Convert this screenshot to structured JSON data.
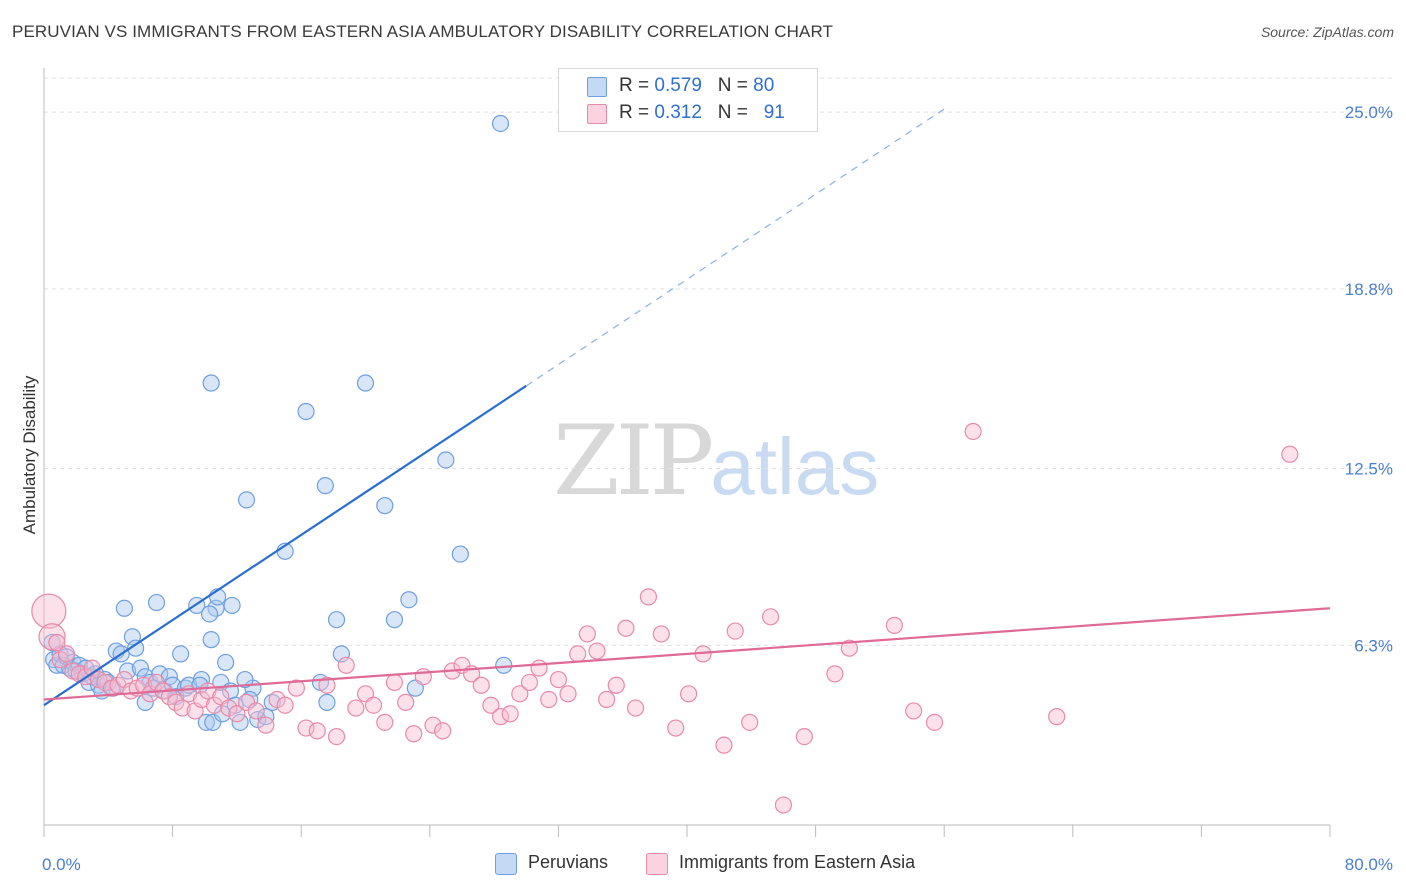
{
  "title": "PERUVIAN VS IMMIGRANTS FROM EASTERN ASIA AMBULATORY DISABILITY CORRELATION CHART",
  "source": "Source: ZipAtlas.com",
  "watermark": {
    "part1": "ZIP",
    "part2": "atlas"
  },
  "legend_top": [
    {
      "r_label": "R = ",
      "r_value": "0.579",
      "n_label": "N = ",
      "n_value": "80",
      "color": "#a8c8f0"
    },
    {
      "r_label": "R = ",
      "r_value": "0.312",
      "n_label": "N = ",
      "n_value": "91",
      "color": "#f8bcd0"
    }
  ],
  "colors": {
    "blue": "#6f9fe0",
    "blue_fill": "#a8c8f0",
    "blue_line": "#2a6fd0",
    "pink": "#e88aa8",
    "pink_fill": "#f8bcd0",
    "pink_line": "#e06a96",
    "grid": "#e0e0e0"
  },
  "chart_data": {
    "type": "scatter",
    "title": "PERUVIAN VS IMMIGRANTS FROM EASTERN ASIA AMBULATORY DISABILITY CORRELATION CHART",
    "xlabel": "",
    "ylabel": "Ambulatory Disability",
    "xlim": [
      0,
      80
    ],
    "ylim": [
      0,
      26.3
    ],
    "x_tick_labels": [
      "0.0%",
      "80.0%"
    ],
    "y_ticks": [
      6.3,
      12.5,
      18.8,
      25.0
    ],
    "y_tick_labels": [
      "6.3%",
      "12.5%",
      "18.8%",
      "25.0%"
    ],
    "grid": true,
    "legend_placement": "bottom",
    "series": [
      {
        "name": "Peruvians",
        "color": "#6f9fe0",
        "trend": {
          "x0": 0,
          "y0": 4.2,
          "x1": 30.0,
          "y1": 15.4,
          "dash_to_x": 56
        },
        "points": [
          [
            0.5,
            6.4
          ],
          [
            0.6,
            5.8
          ],
          [
            0.8,
            5.6
          ],
          [
            1.0,
            6.0
          ],
          [
            1.2,
            5.6
          ],
          [
            1.4,
            5.9
          ],
          [
            1.6,
            5.5
          ],
          [
            1.8,
            5.7
          ],
          [
            2.0,
            5.4
          ],
          [
            2.2,
            5.6
          ],
          [
            2.4,
            5.3
          ],
          [
            2.6,
            5.5
          ],
          [
            2.8,
            5.0
          ],
          [
            3.0,
            5.2
          ],
          [
            3.2,
            5.3
          ],
          [
            3.4,
            4.9
          ],
          [
            3.6,
            4.7
          ],
          [
            3.8,
            5.1
          ],
          [
            4.0,
            5.0
          ],
          [
            4.3,
            4.8
          ],
          [
            4.5,
            6.1
          ],
          [
            4.8,
            6.0
          ],
          [
            5.0,
            7.6
          ],
          [
            5.2,
            5.4
          ],
          [
            5.5,
            6.6
          ],
          [
            5.7,
            6.2
          ],
          [
            6.0,
            5.5
          ],
          [
            6.3,
            5.2
          ],
          [
            6.6,
            5.0
          ],
          [
            6.8,
            4.8
          ],
          [
            7.0,
            7.8
          ],
          [
            7.2,
            5.3
          ],
          [
            7.5,
            4.7
          ],
          [
            7.8,
            5.2
          ],
          [
            8.0,
            4.9
          ],
          [
            8.2,
            4.5
          ],
          [
            8.5,
            6.0
          ],
          [
            8.8,
            4.8
          ],
          [
            9.0,
            4.9
          ],
          [
            9.5,
            7.7
          ],
          [
            9.8,
            5.1
          ],
          [
            10.1,
            3.6
          ],
          [
            10.4,
            6.5
          ],
          [
            10.7,
            7.6
          ],
          [
            11.0,
            5.0
          ],
          [
            11.3,
            5.7
          ],
          [
            11.6,
            4.7
          ],
          [
            11.9,
            4.2
          ],
          [
            12.2,
            3.6
          ],
          [
            12.6,
            11.4
          ],
          [
            13.0,
            4.8
          ],
          [
            13.3,
            3.7
          ],
          [
            10.3,
            7.4
          ],
          [
            10.8,
            8.0
          ],
          [
            9.7,
            4.9
          ],
          [
            6.3,
            4.3
          ],
          [
            10.4,
            15.5
          ],
          [
            10.5,
            3.6
          ],
          [
            11.1,
            3.9
          ],
          [
            11.7,
            7.7
          ],
          [
            12.5,
            5.1
          ],
          [
            12.8,
            4.4
          ],
          [
            13.8,
            3.8
          ],
          [
            14.2,
            4.3
          ],
          [
            15.0,
            9.6
          ],
          [
            16.3,
            14.5
          ],
          [
            17.2,
            5.0
          ],
          [
            17.6,
            4.3
          ],
          [
            18.2,
            7.2
          ],
          [
            17.5,
            11.9
          ],
          [
            18.5,
            6.0
          ],
          [
            20.0,
            15.5
          ],
          [
            21.2,
            11.2
          ],
          [
            21.8,
            7.2
          ],
          [
            22.7,
            7.9
          ],
          [
            23.1,
            4.8
          ],
          [
            25.0,
            12.8
          ],
          [
            25.9,
            9.5
          ],
          [
            28.6,
            5.6
          ],
          [
            28.4,
            24.6
          ]
        ]
      },
      {
        "name": "Immigrants from Eastern Asia",
        "color": "#e88aa8",
        "trend": {
          "x0": 0,
          "y0": 4.4,
          "x1": 80,
          "y1": 7.6
        },
        "points": [
          [
            0.3,
            7.5
          ],
          [
            0.5,
            6.6
          ],
          [
            0.8,
            6.4
          ],
          [
            1.0,
            5.8
          ],
          [
            1.4,
            6.0
          ],
          [
            1.8,
            5.4
          ],
          [
            2.2,
            5.3
          ],
          [
            2.6,
            5.2
          ],
          [
            3.0,
            5.5
          ],
          [
            3.4,
            5.1
          ],
          [
            3.8,
            5.0
          ],
          [
            4.2,
            4.8
          ],
          [
            4.6,
            4.9
          ],
          [
            5.0,
            5.1
          ],
          [
            5.4,
            4.7
          ],
          [
            5.8,
            4.8
          ],
          [
            6.2,
            4.9
          ],
          [
            6.6,
            4.6
          ],
          [
            7.0,
            5.0
          ],
          [
            7.4,
            4.7
          ],
          [
            7.8,
            4.5
          ],
          [
            8.2,
            4.3
          ],
          [
            8.6,
            4.1
          ],
          [
            9.0,
            4.6
          ],
          [
            9.4,
            4.0
          ],
          [
            9.8,
            4.4
          ],
          [
            10.2,
            4.7
          ],
          [
            10.6,
            4.2
          ],
          [
            11.0,
            4.5
          ],
          [
            11.5,
            4.1
          ],
          [
            12.0,
            3.9
          ],
          [
            12.6,
            4.3
          ],
          [
            13.2,
            4.0
          ],
          [
            13.8,
            3.5
          ],
          [
            14.5,
            4.4
          ],
          [
            15.0,
            4.2
          ],
          [
            15.7,
            4.8
          ],
          [
            16.3,
            3.4
          ],
          [
            17.0,
            3.3
          ],
          [
            17.6,
            4.9
          ],
          [
            18.2,
            3.1
          ],
          [
            18.8,
            5.6
          ],
          [
            19.4,
            4.1
          ],
          [
            20.0,
            4.6
          ],
          [
            20.5,
            4.2
          ],
          [
            21.2,
            3.6
          ],
          [
            21.8,
            5.0
          ],
          [
            22.5,
            4.3
          ],
          [
            23.0,
            3.2
          ],
          [
            23.6,
            5.2
          ],
          [
            24.2,
            3.5
          ],
          [
            24.8,
            3.3
          ],
          [
            25.4,
            5.4
          ],
          [
            26.0,
            5.6
          ],
          [
            26.6,
            5.3
          ],
          [
            27.2,
            4.9
          ],
          [
            27.8,
            4.2
          ],
          [
            28.4,
            3.8
          ],
          [
            29.0,
            3.9
          ],
          [
            29.6,
            4.6
          ],
          [
            30.2,
            5.0
          ],
          [
            30.8,
            5.5
          ],
          [
            31.4,
            4.4
          ],
          [
            32.0,
            5.1
          ],
          [
            32.6,
            4.6
          ],
          [
            33.2,
            6.0
          ],
          [
            33.8,
            6.7
          ],
          [
            34.4,
            6.1
          ],
          [
            35.0,
            4.4
          ],
          [
            35.6,
            4.9
          ],
          [
            36.2,
            6.9
          ],
          [
            36.8,
            4.1
          ],
          [
            37.6,
            8.0
          ],
          [
            38.4,
            6.7
          ],
          [
            39.3,
            3.4
          ],
          [
            40.1,
            4.6
          ],
          [
            41.0,
            6.0
          ],
          [
            42.3,
            2.8
          ],
          [
            43.0,
            6.8
          ],
          [
            43.9,
            3.6
          ],
          [
            45.2,
            7.3
          ],
          [
            46.0,
            0.7
          ],
          [
            47.3,
            3.1
          ],
          [
            49.2,
            5.3
          ],
          [
            50.1,
            6.2
          ],
          [
            52.9,
            7.0
          ],
          [
            54.1,
            4.0
          ],
          [
            55.4,
            3.6
          ],
          [
            57.8,
            13.8
          ],
          [
            63.0,
            3.8
          ],
          [
            77.5,
            13.0
          ]
        ]
      }
    ]
  },
  "legend_bottom": [
    {
      "label": "Peruvians",
      "color": "#a8c8f0"
    },
    {
      "label": "Immigrants from Eastern Asia",
      "color": "#f8bcd0"
    }
  ]
}
